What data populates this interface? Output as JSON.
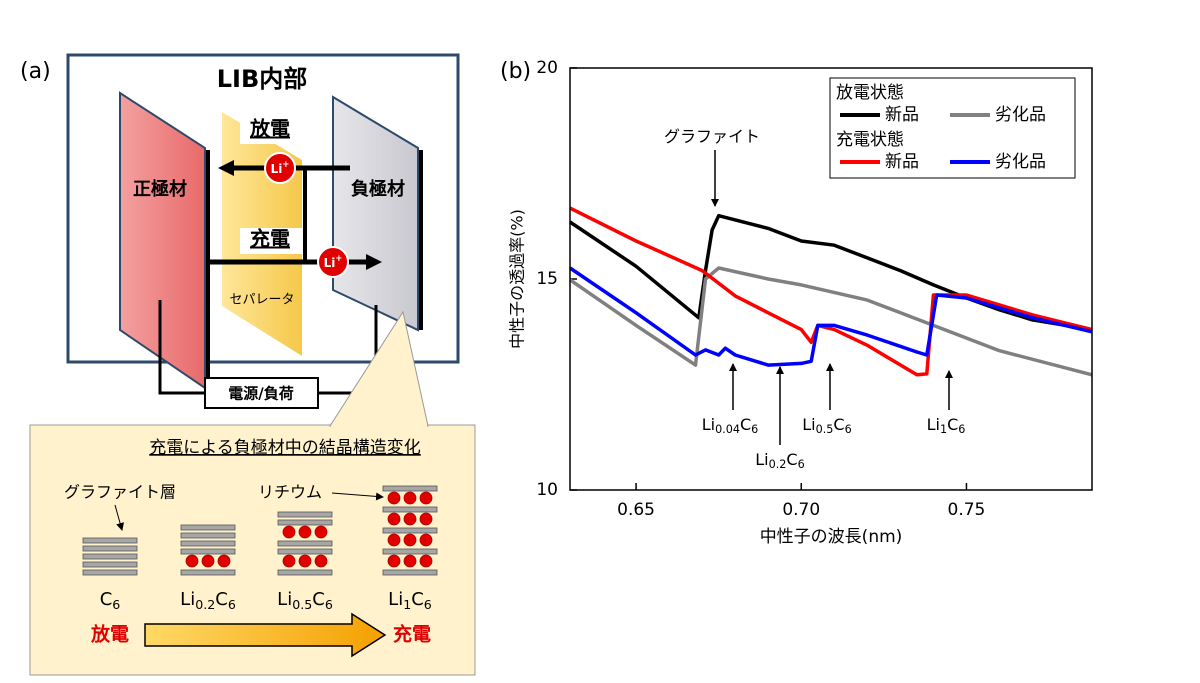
{
  "diagram": {
    "panel_label": "(a)",
    "title": "LIB内部",
    "cathode": "正極材",
    "anode": "負極材",
    "separator": "セパレータ",
    "discharge": "放電",
    "charge": "充電",
    "ion_label": [
      "Li",
      "+"
    ],
    "power": "電源/負荷",
    "callout_title": "充電による負極材中の結晶構造変化",
    "graphite_layer": "グラファイト層",
    "lithium": "リチウム",
    "stages": [
      [
        "C",
        "6"
      ],
      [
        "Li",
        "0.2",
        "C",
        "6"
      ],
      [
        "Li",
        "0.5",
        "C",
        "6"
      ],
      [
        "Li",
        "1",
        "C",
        "6"
      ]
    ],
    "bottom_left": "放電",
    "bottom_right": "充電"
  },
  "chart_data": {
    "type": "line",
    "panel_label": "(b)",
    "x_label": "中性子の波長(nm)",
    "y_label": "中性子の透過率(%)",
    "xlim": [
      0.63,
      0.788
    ],
    "ylim": [
      10,
      20
    ],
    "xticks": [
      0.65,
      {
        "value": 0.7,
        "label": "0.70"
      },
      0.75
    ],
    "yticks": [
      10,
      15,
      20
    ],
    "legend_groups": [
      "放電状態",
      "充電状態"
    ],
    "series": [
      {
        "name": "新品",
        "group": "放電状態",
        "color": "#000000",
        "x": [
          0.63,
          0.65,
          0.669,
          0.671,
          0.673,
          0.675,
          0.69,
          0.7,
          0.71,
          0.72,
          0.73,
          0.74,
          0.75,
          0.76,
          0.77,
          0.788
        ],
        "values": [
          16.35,
          15.3,
          14.08,
          15.2,
          16.16,
          16.5,
          16.2,
          15.9,
          15.8,
          15.5,
          15.2,
          14.86,
          14.55,
          14.27,
          14.03,
          13.8
        ]
      },
      {
        "name": "劣化品",
        "group": "放電状態",
        "color": "#808080",
        "x": [
          0.63,
          0.65,
          0.668,
          0.671,
          0.675,
          0.69,
          0.7,
          0.72,
          0.74,
          0.76,
          0.788
        ],
        "values": [
          14.98,
          13.9,
          12.96,
          15.0,
          15.26,
          15.0,
          14.86,
          14.5,
          13.9,
          13.3,
          12.73
        ]
      },
      {
        "name": "新品",
        "group": "充電状態",
        "color": "#ff0000",
        "x": [
          0.63,
          0.65,
          0.67,
          0.68,
          0.69,
          0.7,
          0.703,
          0.705,
          0.71,
          0.72,
          0.735,
          0.738,
          0.74,
          0.75,
          0.77,
          0.788
        ],
        "values": [
          16.68,
          15.9,
          15.2,
          14.6,
          14.2,
          13.8,
          13.5,
          13.9,
          13.8,
          13.43,
          12.73,
          12.75,
          14.62,
          14.62,
          14.15,
          13.8
        ]
      },
      {
        "name": "劣化品",
        "group": "充電状態",
        "color": "#0000ff",
        "x": [
          0.63,
          0.65,
          0.668,
          0.671,
          0.675,
          0.677,
          0.68,
          0.69,
          0.7,
          0.703,
          0.705,
          0.71,
          0.72,
          0.735,
          0.738,
          0.741,
          0.75,
          0.77,
          0.788
        ],
        "values": [
          15.26,
          14.2,
          13.2,
          13.32,
          13.2,
          13.36,
          13.2,
          12.96,
          13.0,
          13.05,
          13.9,
          13.9,
          13.67,
          13.27,
          13.2,
          14.62,
          14.55,
          14.08,
          13.75
        ]
      }
    ],
    "annotations": [
      [
        "グラファイト"
      ],
      [
        "Li",
        "0.04",
        "C",
        "6"
      ],
      [
        "Li",
        "0.2",
        "C",
        "6"
      ],
      [
        "Li",
        "0.5",
        "C",
        "6"
      ],
      [
        "Li",
        "1",
        "C",
        "6"
      ]
    ]
  }
}
